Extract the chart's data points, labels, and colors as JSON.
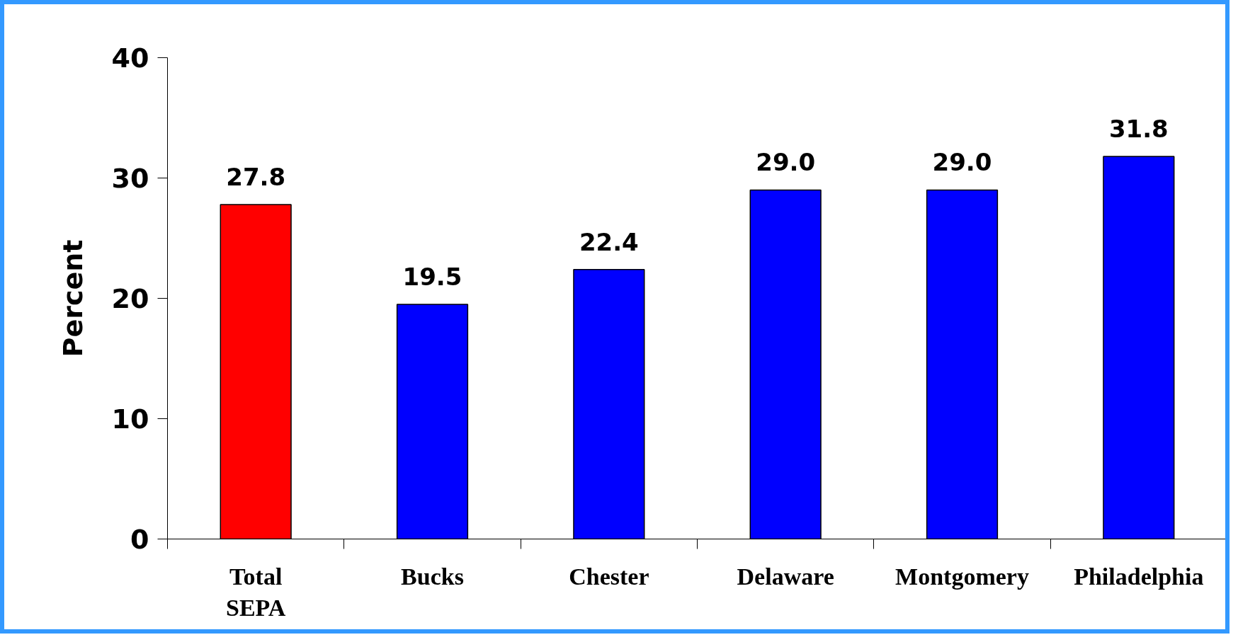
{
  "chart_data": {
    "type": "bar",
    "ylabel": "Percent",
    "categories": [
      "Total SEPA",
      "Bucks",
      "Chester",
      "Delaware",
      "Montgomery",
      "Philadelphia"
    ],
    "values": [
      27.8,
      19.5,
      22.4,
      29.0,
      29.0,
      31.8
    ],
    "colors": [
      "#ff0000",
      "#0000ff",
      "#0000ff",
      "#0000ff",
      "#0000ff",
      "#0000ff"
    ],
    "value_labels": [
      "27.8",
      "19.5",
      "22.4",
      "29.0",
      "29.0",
      "31.8"
    ],
    "ylim": [
      0,
      40
    ],
    "yticks": [
      0,
      10,
      20,
      30,
      40
    ],
    "grid": false
  }
}
